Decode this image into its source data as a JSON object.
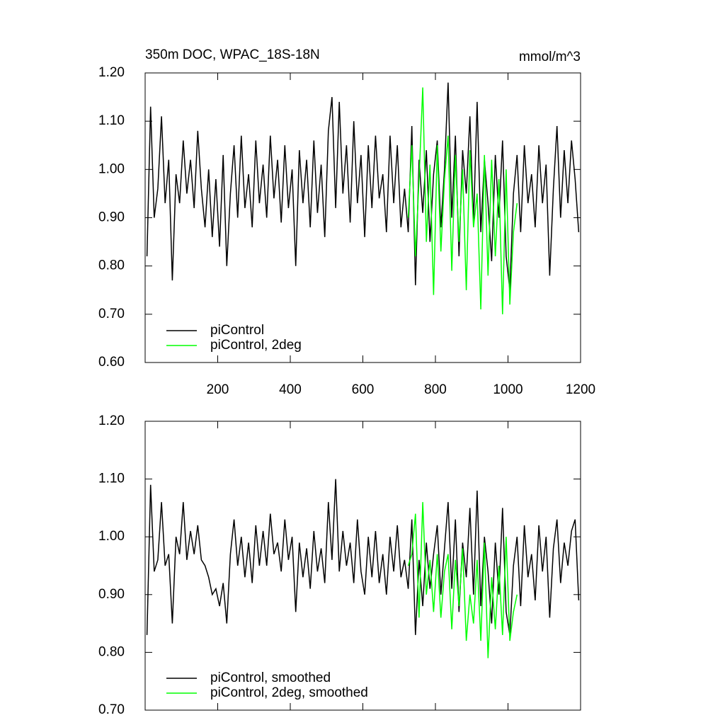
{
  "chart_data": [
    {
      "type": "line",
      "title": "350m DOC, WPAC_18S-18N",
      "units": "mmol/m^3",
      "xlim": [
        0,
        1200
      ],
      "xticks": [
        200,
        400,
        600,
        800,
        1000,
        1200
      ],
      "ylim": [
        0.6,
        1.2
      ],
      "yticks": [
        {
          "value": 0.6,
          "label": "0.60"
        },
        {
          "value": 0.7,
          "label": "0.70"
        },
        {
          "value": 0.8,
          "label": "0.80"
        },
        {
          "value": 0.9,
          "label": "0.90"
        },
        {
          "value": 1.0,
          "label": "1.00"
        },
        {
          "value": 1.1,
          "label": "1.10"
        },
        {
          "value": 1.2,
          "label": "1.20"
        }
      ],
      "series": [
        {
          "name": "piControl",
          "color": "#000000",
          "x": [
            5,
            15,
            25,
            35,
            45,
            55,
            65,
            75,
            85,
            95,
            105,
            115,
            125,
            135,
            145,
            155,
            165,
            175,
            185,
            195,
            205,
            215,
            225,
            235,
            245,
            255,
            265,
            275,
            285,
            295,
            305,
            315,
            325,
            335,
            345,
            355,
            365,
            375,
            385,
            395,
            405,
            415,
            425,
            435,
            445,
            455,
            465,
            475,
            485,
            495,
            505,
            515,
            525,
            535,
            545,
            555,
            565,
            575,
            585,
            595,
            605,
            615,
            625,
            635,
            645,
            655,
            665,
            675,
            685,
            695,
            705,
            715,
            725,
            735,
            745,
            755,
            765,
            775,
            785,
            795,
            805,
            815,
            825,
            835,
            845,
            855,
            865,
            875,
            885,
            895,
            905,
            915,
            925,
            935,
            945,
            955,
            965,
            975,
            985,
            995,
            1005,
            1015,
            1025,
            1035,
            1045,
            1055,
            1065,
            1075,
            1085,
            1095,
            1105,
            1115,
            1125,
            1135,
            1145,
            1155,
            1165,
            1175,
            1185,
            1195
          ],
          "values": [
            0.82,
            1.13,
            0.9,
            0.96,
            1.11,
            0.93,
            1.02,
            0.77,
            0.99,
            0.93,
            1.06,
            0.95,
            1.02,
            0.92,
            1.08,
            0.96,
            0.88,
            1.0,
            0.86,
            0.98,
            0.84,
            1.03,
            0.8,
            0.95,
            1.05,
            0.9,
            1.07,
            0.92,
            0.99,
            0.88,
            1.06,
            0.93,
            1.01,
            0.9,
            1.07,
            0.94,
            1.02,
            0.89,
            1.05,
            0.92,
            1.0,
            0.8,
            1.04,
            0.93,
            1.02,
            0.88,
            1.06,
            0.91,
            1.01,
            0.86,
            1.08,
            1.15,
            0.92,
            1.14,
            0.95,
            1.05,
            0.89,
            1.1,
            0.93,
            1.03,
            0.86,
            1.05,
            0.92,
            1.07,
            0.94,
            0.99,
            0.87,
            1.07,
            0.93,
            1.05,
            0.88,
            0.96,
            0.87,
            1.09,
            0.76,
            1.02,
            0.91,
            1.04,
            0.85,
            0.99,
            1.06,
            0.88,
            1.0,
            1.18,
            0.9,
            1.07,
            0.82,
            1.04,
            0.95,
            1.11,
            0.89,
            1.14,
            0.87,
            1.02,
            0.93,
            0.81,
            1.03,
            0.9,
            1.06,
            0.82,
            0.75,
            0.95,
            1.03,
            0.87,
            1.05,
            0.93,
            0.99,
            0.88,
            1.05,
            0.93,
            1.01,
            0.78,
            0.96,
            1.09,
            0.9,
            1.04,
            0.93,
            1.06,
            0.98,
            0.87
          ]
        },
        {
          "name": "piControl, 2deg",
          "color": "#00ff00",
          "x": [
            725,
            735,
            745,
            755,
            765,
            775,
            785,
            795,
            805,
            815,
            825,
            835,
            845,
            855,
            865,
            875,
            885,
            895,
            905,
            915,
            925,
            935,
            945,
            955,
            965,
            975,
            985,
            995,
            1005,
            1015,
            1025
          ],
          "values": [
            0.9,
            1.05,
            0.82,
            0.98,
            1.17,
            0.85,
            1.01,
            0.74,
            1.05,
            0.83,
            0.98,
            1.07,
            0.79,
            1.03,
            0.85,
            1.0,
            0.75,
            1.04,
            0.88,
            0.95,
            0.71,
            1.03,
            0.78,
            1.02,
            0.82,
            0.98,
            0.7,
            1.0,
            0.72,
            0.87,
            0.93
          ]
        }
      ]
    },
    {
      "type": "line",
      "xlim": [
        0,
        1200
      ],
      "xticks": [
        200,
        400,
        600,
        800,
        1000,
        1200
      ],
      "ylim": [
        0.7,
        1.2
      ],
      "yticks": [
        {
          "value": 0.7,
          "label": "0.70"
        },
        {
          "value": 0.8,
          "label": "0.80"
        },
        {
          "value": 0.9,
          "label": "0.90"
        },
        {
          "value": 1.0,
          "label": "1.00"
        },
        {
          "value": 1.1,
          "label": "1.10"
        },
        {
          "value": 1.2,
          "label": "1.20"
        }
      ],
      "series": [
        {
          "name": "piControl, smoothed",
          "color": "#000000",
          "x": [
            5,
            15,
            25,
            35,
            45,
            55,
            65,
            75,
            85,
            95,
            105,
            115,
            125,
            135,
            145,
            155,
            165,
            175,
            185,
            195,
            205,
            215,
            225,
            235,
            245,
            255,
            265,
            275,
            285,
            295,
            305,
            315,
            325,
            335,
            345,
            355,
            365,
            375,
            385,
            395,
            405,
            415,
            425,
            435,
            445,
            455,
            465,
            475,
            485,
            495,
            505,
            515,
            525,
            535,
            545,
            555,
            565,
            575,
            585,
            595,
            605,
            615,
            625,
            635,
            645,
            655,
            665,
            675,
            685,
            695,
            705,
            715,
            725,
            735,
            745,
            755,
            765,
            775,
            785,
            795,
            805,
            815,
            825,
            835,
            845,
            855,
            865,
            875,
            885,
            895,
            905,
            915,
            925,
            935,
            945,
            955,
            965,
            975,
            985,
            995,
            1005,
            1015,
            1025,
            1035,
            1045,
            1055,
            1065,
            1075,
            1085,
            1095,
            1105,
            1115,
            1125,
            1135,
            1145,
            1155,
            1165,
            1175,
            1185,
            1195
          ],
          "values": [
            0.83,
            1.09,
            0.94,
            0.96,
            1.06,
            0.95,
            0.97,
            0.85,
            1.0,
            0.97,
            1.06,
            0.96,
            1.01,
            0.97,
            1.02,
            0.96,
            0.95,
            0.93,
            0.9,
            0.91,
            0.88,
            0.92,
            0.85,
            0.97,
            1.03,
            0.95,
            1.0,
            0.93,
            0.99,
            0.92,
            1.02,
            0.95,
            1.01,
            0.95,
            1.04,
            0.97,
            0.99,
            0.94,
            1.03,
            0.96,
            1.0,
            0.87,
            0.99,
            0.93,
            0.98,
            0.91,
            1.01,
            0.94,
            0.98,
            0.92,
            1.06,
            0.96,
            1.1,
            0.94,
            1.01,
            0.95,
            0.99,
            0.92,
            1.03,
            0.94,
            0.9,
            1.0,
            0.93,
            1.01,
            0.92,
            0.97,
            0.9,
            1.0,
            0.94,
            1.02,
            0.93,
            0.96,
            0.91,
            1.03,
            0.83,
            0.96,
            0.88,
            0.99,
            0.91,
            0.97,
            1.02,
            0.9,
            0.98,
            1.06,
            0.91,
            1.03,
            0.87,
            0.99,
            0.93,
            1.05,
            0.9,
            1.08,
            0.88,
            1.0,
            0.94,
            0.85,
            0.99,
            0.9,
            1.05,
            0.87,
            0.83,
            0.95,
            1.0,
            0.88,
            1.02,
            0.93,
            0.97,
            0.89,
            1.02,
            0.94,
            1.0,
            0.86,
            0.98,
            1.03,
            0.92,
            0.99,
            0.95,
            1.01,
            1.03,
            0.89
          ]
        },
        {
          "name": "piControl, 2deg, smoothed",
          "color": "#00ff00",
          "x": [
            725,
            735,
            745,
            755,
            765,
            775,
            785,
            795,
            805,
            815,
            825,
            835,
            845,
            855,
            865,
            875,
            885,
            895,
            905,
            915,
            925,
            935,
            945,
            955,
            965,
            975,
            985,
            995,
            1005,
            1015,
            1025
          ],
          "values": [
            0.95,
            0.97,
            1.04,
            0.86,
            1.06,
            0.9,
            0.96,
            0.87,
            0.97,
            0.86,
            0.94,
            0.97,
            0.84,
            0.96,
            0.88,
            0.98,
            0.82,
            0.9,
            0.85,
            0.96,
            0.82,
            0.99,
            0.79,
            0.93,
            0.84,
            0.95,
            0.83,
            1.0,
            0.82,
            0.87,
            0.9
          ]
        }
      ]
    }
  ]
}
